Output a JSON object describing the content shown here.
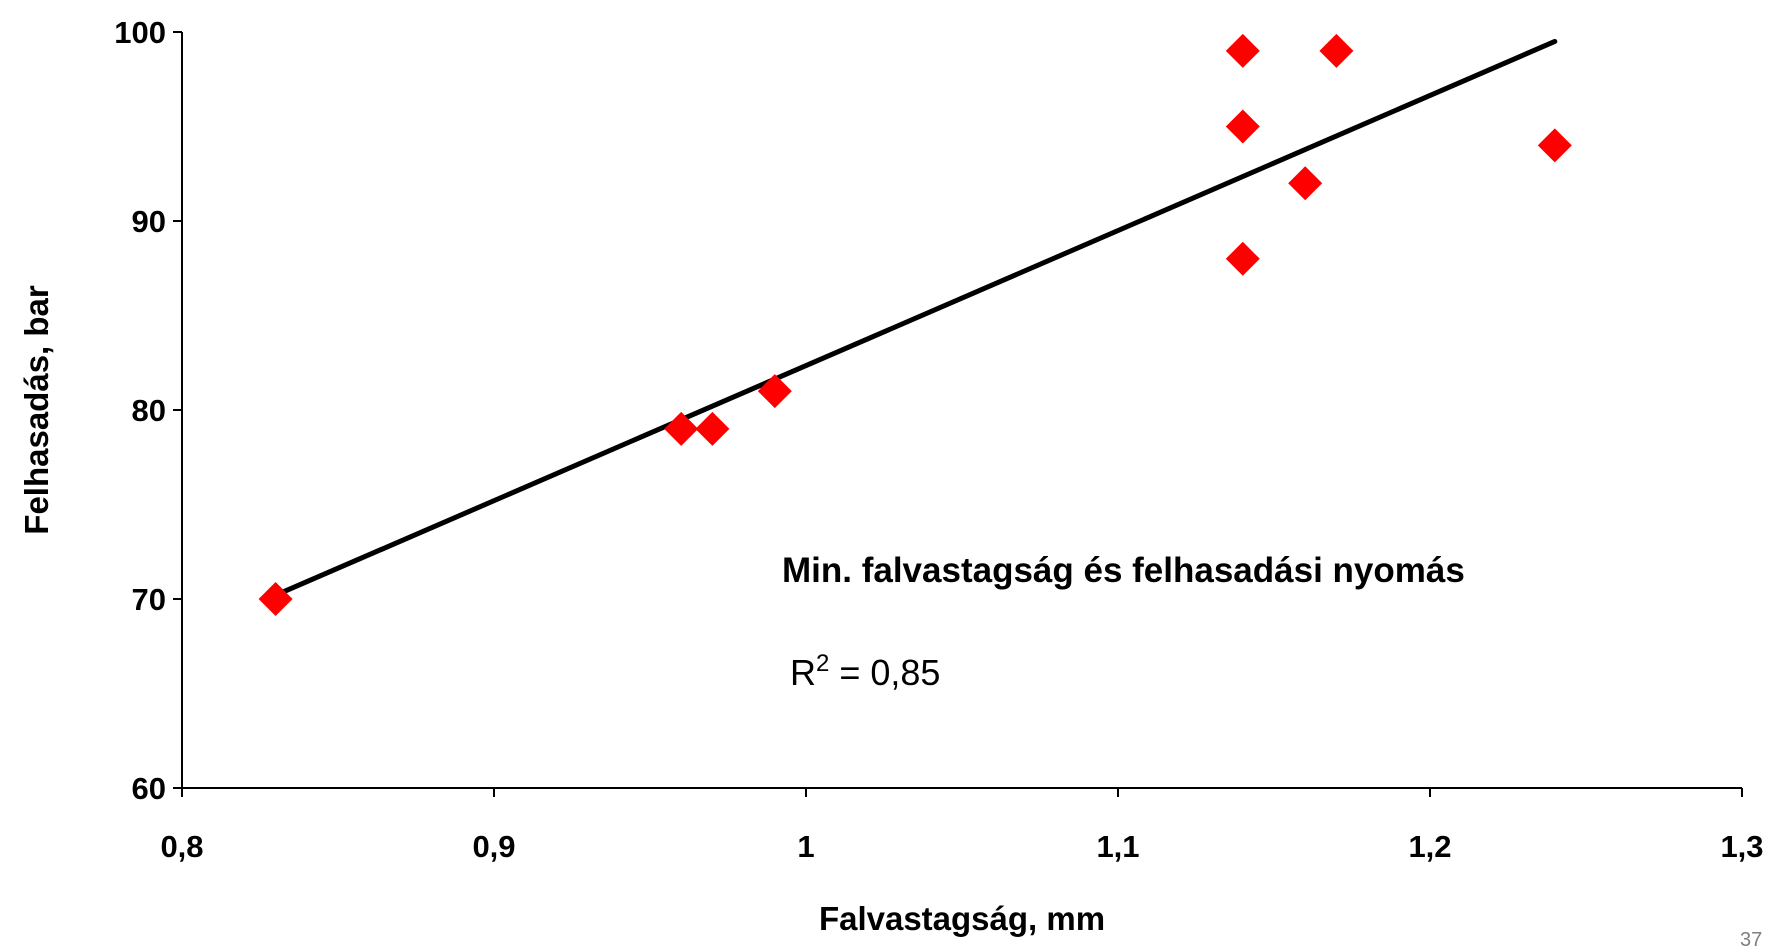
{
  "chart_data": {
    "type": "scatter",
    "xlabel": "Falvastagság, mm",
    "ylabel": "Felhasadás, bar",
    "xlim": [
      0.8,
      1.3
    ],
    "ylim": [
      60,
      100
    ],
    "x_ticks": [
      "0,8",
      "0,9",
      "1",
      "1,1",
      "1,2",
      "1,3"
    ],
    "y_ticks": [
      "60",
      "70",
      "80",
      "90",
      "100"
    ],
    "x_tick_values": [
      0.8,
      0.9,
      1.0,
      1.1,
      1.2,
      1.3
    ],
    "y_tick_values": [
      60,
      70,
      80,
      90,
      100
    ],
    "grid": false,
    "marker": "diamond",
    "marker_color": "#ff0000",
    "trendline_color": "#000000",
    "points": [
      {
        "x": 0.83,
        "y": 70
      },
      {
        "x": 0.96,
        "y": 79
      },
      {
        "x": 0.97,
        "y": 79
      },
      {
        "x": 0.99,
        "y": 81
      },
      {
        "x": 1.14,
        "y": 99
      },
      {
        "x": 1.14,
        "y": 95
      },
      {
        "x": 1.14,
        "y": 88
      },
      {
        "x": 1.16,
        "y": 92
      },
      {
        "x": 1.17,
        "y": 99
      },
      {
        "x": 1.24,
        "y": 94
      }
    ],
    "trendline": {
      "x": [
        0.83,
        1.24
      ],
      "y": [
        70.2,
        99.5
      ]
    },
    "annotation_title": "Min. falvastagság  és felhasadási nyomás",
    "annotation_r2_prefix": "R",
    "annotation_r2_sup": "2",
    "annotation_r2_value": " = 0,85"
  },
  "page_number": "37"
}
